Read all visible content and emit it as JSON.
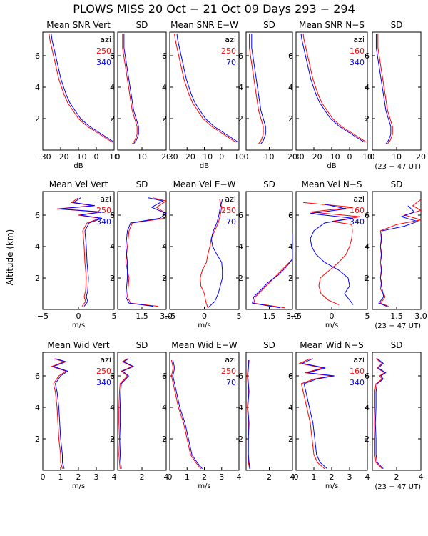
{
  "title": "PLOWS MISS  20 Oct − 21 Oct 09 Days 293 − 294",
  "ylabel": "Altitude (km)",
  "chart_data": {
    "type": "line",
    "ylim": [
      0,
      7.5
    ],
    "yticks": [
      2,
      4,
      6
    ],
    "colors": {
      "red": "#ff0000",
      "blue": "#0000ff"
    },
    "rows": [
      {
        "xlabel_mean": "dB",
        "ut_note": "(23 − 47 UT)",
        "mean_xlim": [
          -30,
          10
        ],
        "mean_xticks": [
          -30,
          -20,
          -10,
          0,
          10
        ],
        "sd_xlim": [
          0,
          20
        ],
        "sd_xticks": [
          0,
          10,
          20
        ],
        "titles": [
          "Mean SNR Vert",
          "SD",
          "Mean SNR E−W",
          "SD",
          "Mean SNR N−S",
          "SD"
        ],
        "legends": [
          {
            "head": "azi",
            "red": "250",
            "blue": "340"
          },
          {
            "head": "azi",
            "red": "250",
            "blue": "70"
          },
          {
            "head": "azi",
            "red": "160",
            "blue": "340"
          }
        ]
      },
      {
        "xlabel_mean": "m/s",
        "ut_note": "(23 − 47 UT)",
        "mean_xlim": [
          -5,
          5
        ],
        "mean_xticks": [
          -5,
          0,
          5
        ],
        "sd_xlim": [
          0,
          3
        ],
        "sd_xticks": [
          1.5,
          3.0
        ],
        "sd_tick_labels": [
          "1.5",
          "3.0"
        ],
        "titles": [
          "Mean Vel Vert",
          "SD",
          "Mean Vel E−W",
          "SD",
          "Mean Vel N−S",
          "SD"
        ],
        "legends": [
          {
            "head": "azi",
            "red": "250",
            "blue": "340"
          },
          {
            "head": "azi",
            "red": "250",
            "blue": "70"
          },
          {
            "head": "azi",
            "red": "160",
            "blue": "340"
          }
        ]
      },
      {
        "xlabel_mean": "m/s",
        "ut_note": "(23 − 47 UT)",
        "mean_xlim": [
          0,
          4
        ],
        "mean_xticks": [
          0,
          1,
          2,
          3,
          4
        ],
        "sd_xlim": [
          0,
          4
        ],
        "sd_xticks": [
          2,
          4
        ],
        "titles": [
          "Mean Wid Vert",
          "SD",
          "Mean Wid E−W",
          "SD",
          "Mean Wid N−S",
          "SD"
        ],
        "legends": [
          {
            "head": "azi",
            "red": "250",
            "blue": "340"
          },
          {
            "head": "azi",
            "red": "250",
            "blue": "70"
          },
          {
            "head": "azi",
            "red": "160",
            "blue": "340"
          }
        ]
      }
    ],
    "series": {
      "snr_mean": [
        [
          0.5,
          9
        ],
        [
          1.0,
          2
        ],
        [
          1.5,
          -5
        ],
        [
          2.0,
          -10
        ],
        [
          2.5,
          -13
        ],
        [
          3.0,
          -16
        ],
        [
          3.5,
          -18
        ],
        [
          4.0,
          -19.5
        ],
        [
          4.5,
          -21
        ],
        [
          5.0,
          -22
        ],
        [
          5.5,
          -23
        ],
        [
          6.0,
          -24
        ],
        [
          6.5,
          -25
        ],
        [
          7.0,
          -26
        ],
        [
          7.4,
          -26.5
        ]
      ],
      "snr_sd": [
        [
          0.4,
          6
        ],
        [
          0.6,
          7
        ],
        [
          1.0,
          8
        ],
        [
          1.5,
          8
        ],
        [
          2.0,
          7
        ],
        [
          2.5,
          6
        ],
        [
          3.0,
          5.5
        ],
        [
          3.5,
          5
        ],
        [
          4.0,
          4.5
        ],
        [
          4.5,
          4
        ],
        [
          5.0,
          3.5
        ],
        [
          5.5,
          3
        ],
        [
          6.0,
          2.5
        ],
        [
          6.5,
          2
        ],
        [
          7.0,
          2
        ],
        [
          7.4,
          2
        ]
      ],
      "vel_vert": [
        [
          0.2,
          0.5
        ],
        [
          0.5,
          1
        ],
        [
          0.8,
          0.8
        ],
        [
          1.2,
          1.0
        ],
        [
          2.0,
          1.1
        ],
        [
          3.0,
          0.9
        ],
        [
          4.0,
          0.8
        ],
        [
          5.0,
          0.6
        ],
        [
          5.5,
          1.2
        ],
        [
          5.8,
          3
        ],
        [
          6.0,
          0
        ],
        [
          6.2,
          3
        ],
        [
          6.4,
          -3
        ],
        [
          6.6,
          2
        ],
        [
          6.8,
          -1
        ],
        [
          7.1,
          0
        ]
      ],
      "vel_sd_red": [
        [
          0.2,
          2.5
        ],
        [
          0.4,
          0.8
        ],
        [
          0.8,
          0.6
        ],
        [
          2,
          0.7
        ],
        [
          3,
          0.5
        ],
        [
          4,
          0.6
        ],
        [
          5,
          0.7
        ],
        [
          5.5,
          0.9
        ],
        [
          5.8,
          2.9
        ],
        [
          6.1,
          3.1
        ],
        [
          6.5,
          2.4
        ],
        [
          6.9,
          3.0
        ],
        [
          7.1,
          2.2
        ]
      ],
      "vel_sd_blue": [
        [
          0.2,
          2.2
        ],
        [
          0.4,
          0.7
        ],
        [
          0.8,
          0.5
        ],
        [
          2,
          0.6
        ],
        [
          3,
          0.6
        ],
        [
          4,
          0.5
        ],
        [
          5,
          0.6
        ],
        [
          5.5,
          0.8
        ],
        [
          5.8,
          2.6
        ],
        [
          6.1,
          3.2
        ],
        [
          6.5,
          2.1
        ],
        [
          6.9,
          2.8
        ],
        [
          7.1,
          1.9
        ]
      ],
      "vel_ew_red": [
        [
          0.1,
          0.5
        ],
        [
          0.5,
          0.2
        ],
        [
          1.0,
          0
        ],
        [
          1.5,
          -0.5
        ],
        [
          2.0,
          -0.6
        ],
        [
          2.5,
          -0.3
        ],
        [
          3.0,
          0.3
        ],
        [
          3.5,
          0.5
        ],
        [
          4.0,
          0.8
        ],
        [
          4.5,
          1.0
        ],
        [
          5.0,
          1.5
        ],
        [
          5.5,
          2.0
        ],
        [
          6.0,
          2.3
        ],
        [
          6.5,
          2.5
        ],
        [
          7.0,
          2.2
        ]
      ],
      "vel_ew_blue": [
        [
          0.1,
          0.5
        ],
        [
          0.5,
          1.5
        ],
        [
          1.0,
          2.0
        ],
        [
          1.5,
          2.3
        ],
        [
          2.0,
          2.6
        ],
        [
          2.5,
          2.6
        ],
        [
          3.0,
          2.5
        ],
        [
          3.5,
          1.8
        ],
        [
          4.0,
          1.2
        ],
        [
          4.5,
          1.0
        ],
        [
          5.0,
          1.3
        ],
        [
          5.5,
          1.8
        ],
        [
          6.0,
          2.1
        ],
        [
          6.5,
          2.3
        ],
        [
          7.0,
          2.6
        ]
      ],
      "vel_ew_sd_red": [
        [
          0.1,
          2.5
        ],
        [
          0.4,
          0.5
        ],
        [
          0.8,
          0.6
        ],
        [
          1.2,
          1.0
        ],
        [
          1.7,
          1.5
        ],
        [
          2.2,
          2.0
        ],
        [
          2.7,
          2.5
        ],
        [
          3.2,
          3.0
        ],
        [
          3.6,
          3.4
        ]
      ],
      "vel_ew_sd_blue": [
        [
          0.1,
          2.2
        ],
        [
          0.4,
          0.4
        ],
        [
          0.8,
          0.5
        ],
        [
          1.2,
          0.9
        ],
        [
          1.7,
          1.4
        ],
        [
          2.2,
          2.1
        ],
        [
          2.7,
          2.6
        ],
        [
          3.2,
          3.1
        ],
        [
          3.8,
          3.4
        ],
        [
          4.3,
          3.7
        ],
        [
          4.8,
          3.85
        ]
      ],
      "vel_ns_red": [
        [
          0.3,
          1
        ],
        [
          0.6,
          -0.5
        ],
        [
          1.0,
          -1.5
        ],
        [
          1.5,
          -1.8
        ],
        [
          2.0,
          -1.6
        ],
        [
          2.5,
          -0.3
        ],
        [
          3.0,
          1.0
        ],
        [
          3.5,
          2.0
        ],
        [
          4.0,
          2.5
        ],
        [
          4.5,
          2.8
        ],
        [
          5.0,
          2.9
        ],
        [
          5.4,
          2.8
        ],
        [
          5.6,
          0
        ],
        [
          5.9,
          4
        ],
        [
          6.2,
          -3
        ],
        [
          6.5,
          3
        ],
        [
          6.8,
          -4
        ]
      ],
      "vel_ns_blue": [
        [
          0.3,
          3
        ],
        [
          0.6,
          2.5
        ],
        [
          1.0,
          1.8
        ],
        [
          1.5,
          2.5
        ],
        [
          2.0,
          2.3
        ],
        [
          2.5,
          1.0
        ],
        [
          3.0,
          -1.0
        ],
        [
          3.5,
          -2.2
        ],
        [
          4.0,
          -2.8
        ],
        [
          4.5,
          -3.0
        ],
        [
          5.0,
          -2.5
        ],
        [
          5.5,
          -1.0
        ],
        [
          5.8,
          3
        ],
        [
          6.1,
          -3
        ],
        [
          6.4,
          2
        ],
        [
          6.7,
          -1
        ]
      ],
      "vel_ns_sd_red": [
        [
          0.2,
          1.0
        ],
        [
          0.4,
          0.5
        ],
        [
          0.8,
          0.8
        ],
        [
          1.3,
          0.5
        ],
        [
          2,
          0.6
        ],
        [
          3,
          0.5
        ],
        [
          4,
          0.6
        ],
        [
          5,
          0.5
        ],
        [
          5.4,
          1.5
        ],
        [
          5.7,
          3.0
        ],
        [
          6.0,
          2.0
        ],
        [
          6.3,
          3.0
        ],
        [
          6.6,
          2.5
        ],
        [
          7.0,
          3.0
        ]
      ],
      "vel_ns_sd_blue": [
        [
          0.2,
          0.9
        ],
        [
          0.4,
          0.4
        ],
        [
          0.8,
          0.7
        ],
        [
          1.3,
          0.6
        ],
        [
          2,
          0.5
        ],
        [
          3,
          0.6
        ],
        [
          4,
          0.5
        ],
        [
          5,
          0.6
        ],
        [
          5.3,
          2.0
        ],
        [
          5.6,
          2.8
        ],
        [
          5.9,
          1.8
        ],
        [
          6.2,
          2.6
        ],
        [
          6.6,
          2.2
        ]
      ],
      "wid_vert": [
        [
          0.1,
          1.1
        ],
        [
          0.5,
          1.0
        ],
        [
          1,
          1.0
        ],
        [
          2,
          0.9
        ],
        [
          3,
          0.85
        ],
        [
          4,
          0.8
        ],
        [
          5,
          0.7
        ],
        [
          5.5,
          0.6
        ],
        [
          6.0,
          0.9
        ],
        [
          6.3,
          1.3
        ],
        [
          6.6,
          0.5
        ],
        [
          6.9,
          1.2
        ],
        [
          7.1,
          0.6
        ]
      ],
      "wid_sd": [
        [
          0.1,
          0.2
        ],
        [
          0.5,
          0.15
        ],
        [
          1,
          0.1
        ],
        [
          2,
          0.15
        ],
        [
          3,
          0.1
        ],
        [
          4,
          0.1
        ],
        [
          5,
          0.15
        ],
        [
          5.5,
          0.2
        ],
        [
          6.0,
          0.8
        ],
        [
          6.3,
          0.3
        ],
        [
          6.6,
          1.2
        ],
        [
          6.9,
          0.4
        ],
        [
          7.1,
          0.8
        ]
      ],
      "wid_ew": [
        [
          0.1,
          1.8
        ],
        [
          0.5,
          1.5
        ],
        [
          1,
          1.2
        ],
        [
          2,
          1.0
        ],
        [
          3,
          0.8
        ],
        [
          4,
          0.5
        ],
        [
          5,
          0.3
        ],
        [
          5.5,
          0.2
        ],
        [
          6.0,
          0.1
        ],
        [
          6.5,
          0.2
        ],
        [
          7.0,
          0.1
        ]
      ],
      "wid_ew_sd": [
        [
          0.1,
          0.3
        ],
        [
          0.5,
          0.2
        ],
        [
          1,
          0.15
        ],
        [
          2,
          0.15
        ],
        [
          3,
          0.2
        ],
        [
          4,
          0.1
        ],
        [
          5,
          0.2
        ],
        [
          6,
          0.1
        ],
        [
          7.0,
          0.2
        ]
      ],
      "wid_ns": [
        [
          0.1,
          1.6
        ],
        [
          0.5,
          1.2
        ],
        [
          1,
          1.0
        ],
        [
          2,
          0.9
        ],
        [
          3,
          0.8
        ],
        [
          4,
          0.6
        ],
        [
          5,
          0.4
        ],
        [
          5.5,
          0.3
        ],
        [
          5.8,
          1.0
        ],
        [
          6.0,
          2.0
        ],
        [
          6.2,
          0.5
        ],
        [
          6.5,
          1.5
        ],
        [
          6.8,
          0.2
        ],
        [
          7.1,
          0.8
        ]
      ],
      "wid_ns_sd": [
        [
          0.1,
          0.8
        ],
        [
          0.5,
          0.3
        ],
        [
          1,
          0.2
        ],
        [
          2,
          0.2
        ],
        [
          3,
          0.15
        ],
        [
          4,
          0.2
        ],
        [
          5,
          0.2
        ],
        [
          5.5,
          0.3
        ],
        [
          5.8,
          0.8
        ],
        [
          6.0,
          0.6
        ],
        [
          6.2,
          1.0
        ],
        [
          6.5,
          0.4
        ],
        [
          6.8,
          0.8
        ],
        [
          7.1,
          0.3
        ]
      ]
    }
  }
}
